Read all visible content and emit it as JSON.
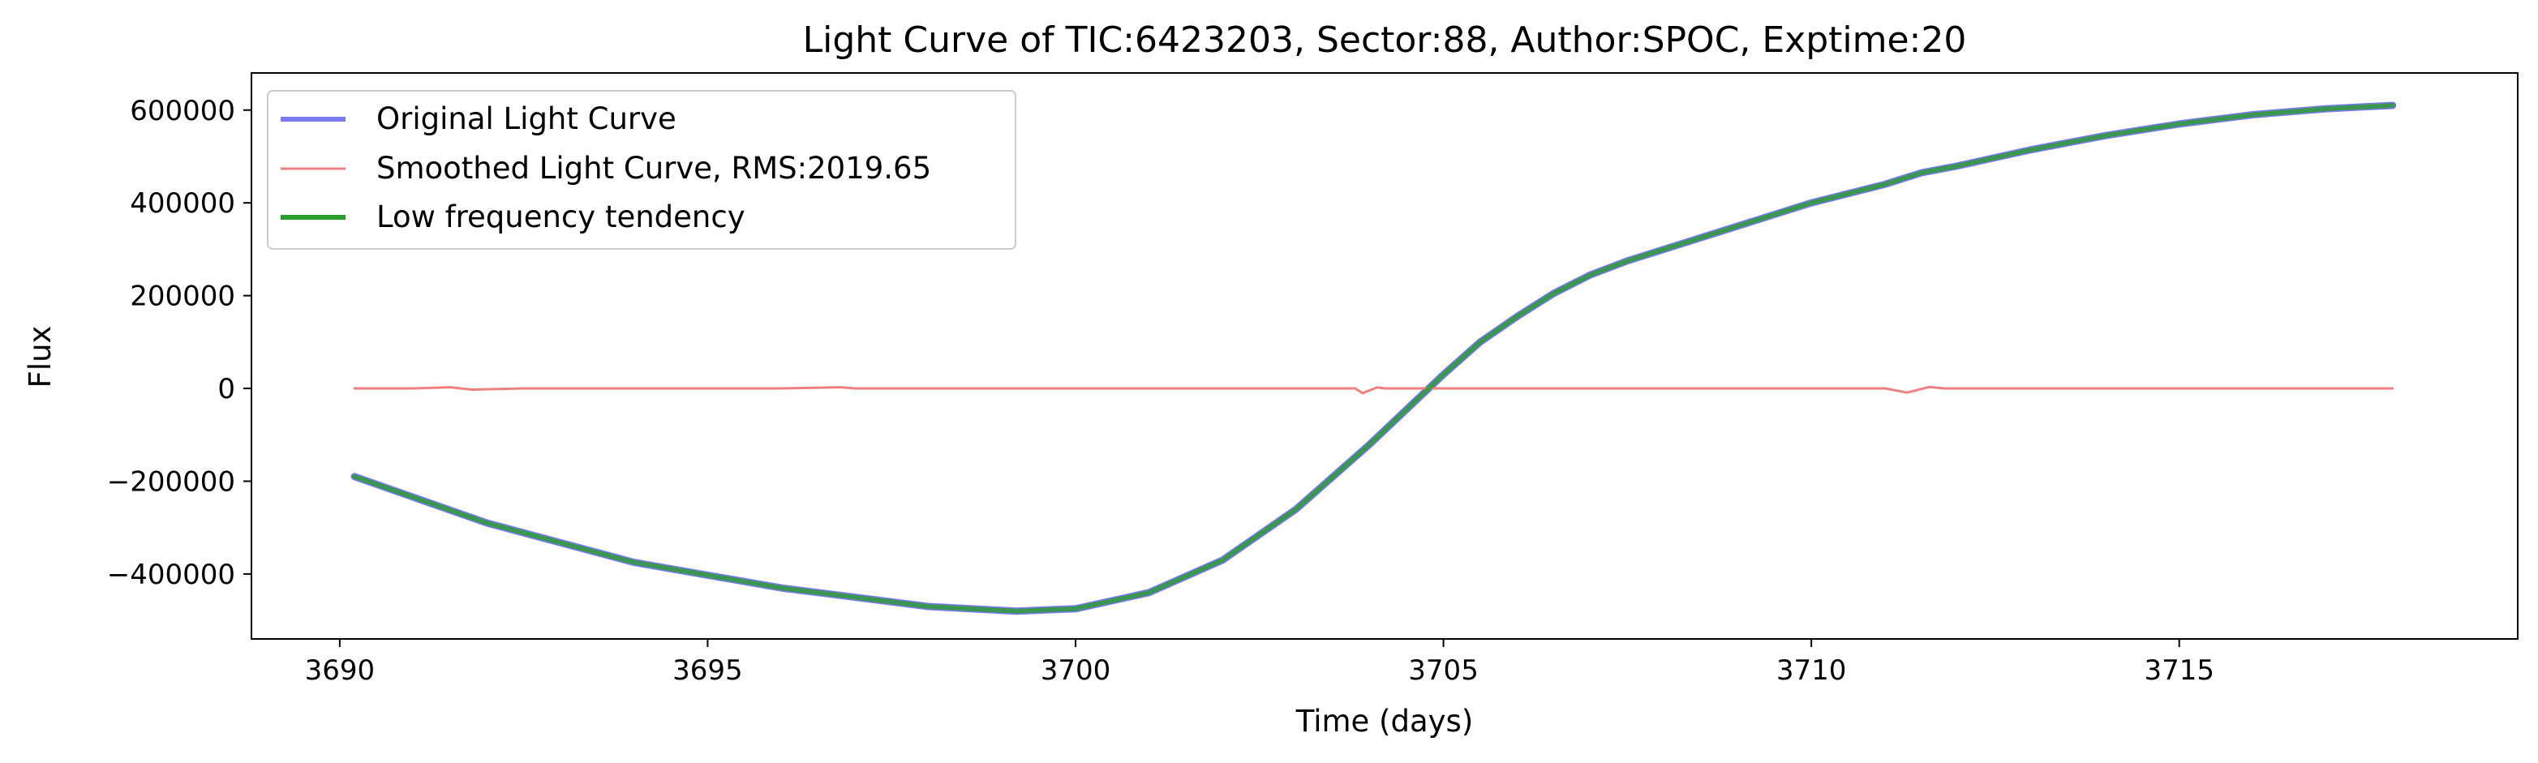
{
  "chart_data": {
    "type": "line",
    "title": "Light Curve of TIC:6423203, Sector:88, Author:SPOC, Exptime:20",
    "xlabel": "Time (days)",
    "ylabel": "Flux",
    "xlim": [
      3688.8,
      3719.6
    ],
    "ylim": [
      -540000,
      680000
    ],
    "xticks": [
      3690,
      3695,
      3700,
      3705,
      3710,
      3715
    ],
    "xtick_labels": [
      "3690",
      "3695",
      "3700",
      "3705",
      "3710",
      "3715"
    ],
    "yticks": [
      -400000,
      -200000,
      0,
      200000,
      400000,
      600000
    ],
    "ytick_labels": [
      "−400000",
      "−200000",
      "0",
      "200000",
      "400000",
      "600000"
    ],
    "grid": false,
    "legend_position": "upper-left",
    "series": [
      {
        "name": "Original Light Curve",
        "color": "#7b7bf0",
        "x": [
          3690.2,
          3692,
          3694,
          3696,
          3698,
          3699.2,
          3700,
          3701,
          3702,
          3703,
          3704,
          3704.5,
          3705,
          3705.5,
          3706,
          3706.5,
          3707,
          3707.5,
          3708,
          3708.5,
          3709,
          3709.5,
          3710,
          3710.5,
          3711,
          3711.5,
          3712,
          3713,
          3714,
          3715,
          3716,
          3717,
          3717.9
        ],
        "y": [
          -190000,
          -290000,
          -375000,
          -430000,
          -470000,
          -480000,
          -475000,
          -440000,
          -370000,
          -260000,
          -120000,
          -45000,
          30000,
          100000,
          155000,
          205000,
          245000,
          275000,
          300000,
          325000,
          350000,
          375000,
          400000,
          420000,
          440000,
          465000,
          480000,
          515000,
          545000,
          570000,
          590000,
          603000,
          610000
        ]
      },
      {
        "name": "Smoothed Light Curve, RMS:2019.65",
        "color": "#f08080",
        "x": [
          3690.2,
          3691,
          3691.5,
          3691.8,
          3692.5,
          3694,
          3696,
          3696.8,
          3697,
          3698,
          3700,
          3702,
          3703.8,
          3703.9,
          3704.1,
          3704.2,
          3705,
          3706,
          3707,
          3708,
          3709,
          3710,
          3711,
          3711.3,
          3711.6,
          3711.8,
          3713,
          3715,
          3717,
          3717.9
        ],
        "y": [
          0,
          0,
          2500,
          -2500,
          0,
          0,
          0,
          2500,
          0,
          0,
          0,
          0,
          0,
          -10000,
          2000,
          0,
          0,
          0,
          0,
          0,
          0,
          0,
          0,
          -9000,
          3000,
          0,
          0,
          0,
          0,
          0
        ]
      },
      {
        "name": "Low frequency tendency",
        "color": "#2a9d2a",
        "x": [
          3690.2,
          3692,
          3694,
          3696,
          3698,
          3699.2,
          3700,
          3701,
          3702,
          3703,
          3704,
          3704.5,
          3705,
          3705.5,
          3706,
          3706.5,
          3707,
          3707.5,
          3708,
          3708.5,
          3709,
          3709.5,
          3710,
          3710.5,
          3711,
          3711.5,
          3712,
          3713,
          3714,
          3715,
          3716,
          3717,
          3717.9
        ],
        "y": [
          -190000,
          -290000,
          -375000,
          -430000,
          -470000,
          -480000,
          -475000,
          -440000,
          -370000,
          -260000,
          -120000,
          -45000,
          30000,
          100000,
          155000,
          205000,
          245000,
          275000,
          300000,
          325000,
          350000,
          375000,
          400000,
          420000,
          440000,
          465000,
          480000,
          515000,
          545000,
          570000,
          590000,
          603000,
          610000
        ]
      }
    ]
  }
}
